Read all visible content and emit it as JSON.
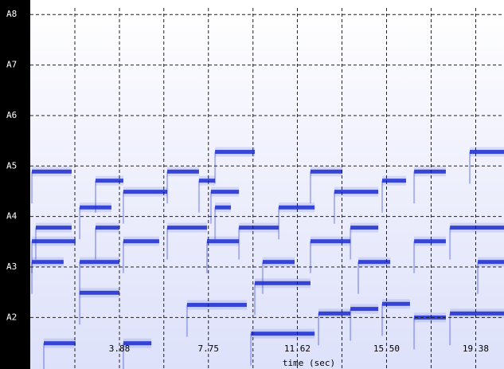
{
  "chart_data": {
    "type": "spectrogram",
    "x_label": "time (sec)",
    "color": "#1a2bd0",
    "xlim": [
      0,
      20.61
    ],
    "ylim": [
      0.98,
      8.13
    ],
    "xticks": [
      3.88,
      {
        "value": 7.75,
        "label": "7.75"
      },
      11.62,
      {
        "value": 15.5,
        "label": "15.50"
      },
      19.38
    ],
    "xgrid": [
      1.94,
      5.81,
      9.69,
      13.56,
      17.44
    ],
    "yticks": [
      {
        "value": 2,
        "label": "A2"
      },
      {
        "value": 3,
        "label": "A3"
      },
      {
        "value": 4,
        "label": "A4"
      },
      {
        "value": 5,
        "label": "A5"
      },
      {
        "value": 6,
        "label": "A6"
      },
      {
        "value": 7,
        "label": "A7"
      },
      {
        "value": 8,
        "label": "A8"
      }
    ],
    "grid": true,
    "notes": {
      "start": [
        0.59,
        2.15,
        4.05,
        6.82,
        9.6,
        12.54,
        13.93,
        15.31,
        16.7,
        18.26,
        9.77,
        0.07,
        4.05,
        7.69,
        12.19,
        16.7,
        0.24,
        2.84,
        5.96,
        9.08,
        13.93,
        18.26,
        0.07,
        2.15,
        10.11,
        14.27,
        19.47,
        4.05,
        7.86,
        13.23,
        0.07,
        5.96,
        12.19,
        16.7,
        8.04,
        19.12,
        2.15,
        8.04,
        10.81,
        2.84,
        7.34,
        15.31
      ],
      "end": [
        1.97,
        3.88,
        5.27,
        9.42,
        12.37,
        13.93,
        15.14,
        16.52,
        18.08,
        20.61,
        12.19,
        1.97,
        5.61,
        9.08,
        13.93,
        18.08,
        1.8,
        3.88,
        7.69,
        10.81,
        15.14,
        20.61,
        1.45,
        3.88,
        11.5,
        15.66,
        20.61,
        5.96,
        9.08,
        15.14,
        1.8,
        7.34,
        13.58,
        18.08,
        9.77,
        20.61,
        3.53,
        8.73,
        12.37,
        4.05,
        8.04,
        16.35
      ],
      "pitch": [
        1.49,
        2.49,
        1.49,
        2.25,
        1.68,
        2.08,
        2.17,
        2.27,
        2.0,
        2.08,
        2.68,
        3.51,
        3.51,
        3.51,
        3.51,
        3.51,
        3.78,
        3.78,
        3.78,
        3.78,
        3.78,
        3.78,
        3.1,
        3.1,
        3.1,
        3.1,
        3.1,
        4.49,
        4.49,
        4.49,
        4.89,
        4.89,
        4.89,
        4.89,
        5.28,
        5.28,
        4.18,
        4.18,
        4.18,
        4.71,
        4.71,
        4.71
      ]
    }
  }
}
